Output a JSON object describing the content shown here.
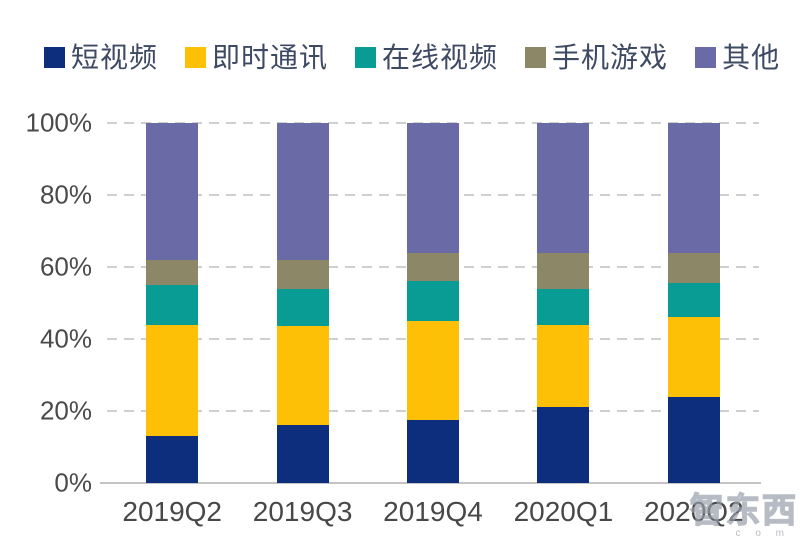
{
  "chart_data": {
    "type": "bar",
    "stacked": true,
    "unit": "%",
    "title": "",
    "categories": [
      "2019Q2",
      "2019Q3",
      "2019Q4",
      "2020Q1",
      "2020Q2"
    ],
    "series": [
      {
        "name": "短视频",
        "color": "#0C2E7C",
        "values": [
          13,
          16,
          17.5,
          21,
          24
        ]
      },
      {
        "name": "即时通讯",
        "color": "#FDC006",
        "values": [
          31,
          27.5,
          27.5,
          23,
          22
        ]
      },
      {
        "name": "在线视频",
        "color": "#089C94",
        "values": [
          11,
          10.5,
          11,
          10,
          9.5
        ]
      },
      {
        "name": "手机游戏",
        "color": "#8B8767",
        "values": [
          7,
          8,
          8,
          10,
          8.5
        ]
      },
      {
        "name": "其他",
        "color": "#6A6AA6",
        "values": [
          38,
          38,
          36,
          36,
          36
        ]
      }
    ],
    "ylim": [
      0,
      100
    ],
    "yticks": [
      "0%",
      "20%",
      "40%",
      "60%",
      "80%",
      "100%"
    ],
    "grid": "horizontal dashed",
    "legend_position": "top"
  },
  "watermark": {
    "text": "智东西",
    "sub": "c o m"
  }
}
